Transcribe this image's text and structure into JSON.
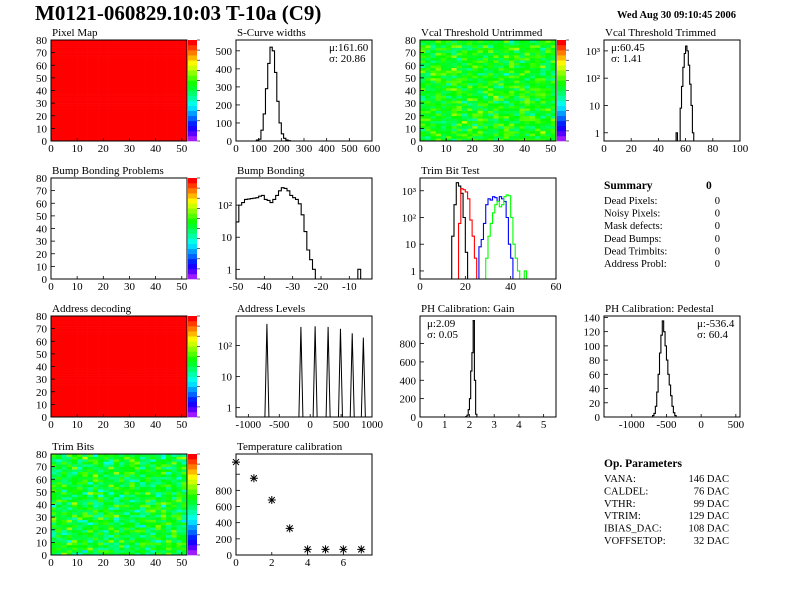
{
  "header": {
    "title": "M0121-060829.10:03 T-10a (C9)",
    "date": "Wed Aug 30 09:10:45 2006"
  },
  "colors": {
    "frame": "#000000",
    "hist": "#000000",
    "trim_black": "#000000",
    "trim_red": "#ff0000",
    "trim_blue": "#0000ff",
    "trim_green": "#00ff00"
  },
  "chart_data": [
    {
      "id": "pixel-map",
      "type": "heatmap",
      "title": "Pixel Map",
      "x_range": [
        0,
        52
      ],
      "y_range": [
        0,
        80
      ],
      "z_range": [
        0,
        10
      ],
      "fill": "uniform",
      "z_value": 10,
      "xticks": [
        {
          "v": 0,
          "l": "0"
        },
        {
          "v": 10,
          "l": "10"
        },
        {
          "v": 20,
          "l": "20"
        },
        {
          "v": 30,
          "l": "30"
        },
        {
          "v": 40,
          "l": "40"
        },
        {
          "v": 50,
          "l": "50"
        }
      ],
      "yticks": [
        {
          "v": 0,
          "l": "0"
        },
        {
          "v": 10,
          "l": "10"
        },
        {
          "v": 20,
          "l": "20"
        },
        {
          "v": 30,
          "l": "30"
        },
        {
          "v": 40,
          "l": "40"
        },
        {
          "v": 50,
          "l": "50"
        },
        {
          "v": 60,
          "l": "60"
        },
        {
          "v": 70,
          "l": "70"
        },
        {
          "v": 80,
          "l": "80"
        }
      ]
    },
    {
      "id": "s-curve-widths",
      "type": "bar",
      "title": "S-Curve widths",
      "log": false,
      "x_range": [
        0,
        600
      ],
      "y_range": [
        0,
        560
      ],
      "bins": {
        "x0": 90,
        "width": 10,
        "counts": [
          5,
          10,
          60,
          150,
          290,
          430,
          520,
          500,
          380,
          220,
          100,
          40,
          15,
          5,
          2
        ]
      },
      "stats": [
        "μ:161.60",
        "σ: 20.86"
      ],
      "xticks": [
        {
          "v": 0,
          "l": "0"
        },
        {
          "v": 100,
          "l": "100"
        },
        {
          "v": 200,
          "l": "200"
        },
        {
          "v": 300,
          "l": "300"
        },
        {
          "v": 400,
          "l": "400"
        },
        {
          "v": 500,
          "l": "500"
        },
        {
          "v": 600,
          "l": "600"
        }
      ],
      "yticks": [
        {
          "v": 0,
          "l": "0"
        },
        {
          "v": 100,
          "l": "100"
        },
        {
          "v": 200,
          "l": "200"
        },
        {
          "v": 300,
          "l": "300"
        },
        {
          "v": 400,
          "l": "400"
        },
        {
          "v": 500,
          "l": "500"
        }
      ]
    },
    {
      "id": "vcal-threshold-untrimmed",
      "type": "heatmap",
      "title": "Vcal Threshold Untrimmed",
      "x_range": [
        0,
        52
      ],
      "y_range": [
        0,
        80
      ],
      "z_range": [
        90,
        135
      ],
      "fill": "noisy",
      "z_mean": 115,
      "z_spread": 4,
      "xticks": [
        {
          "v": 0,
          "l": "0"
        },
        {
          "v": 10,
          "l": "10"
        },
        {
          "v": 20,
          "l": "20"
        },
        {
          "v": 30,
          "l": "30"
        },
        {
          "v": 40,
          "l": "40"
        },
        {
          "v": 50,
          "l": "50"
        }
      ],
      "yticks": [
        {
          "v": 0,
          "l": "0"
        },
        {
          "v": 10,
          "l": "10"
        },
        {
          "v": 20,
          "l": "20"
        },
        {
          "v": 30,
          "l": "30"
        },
        {
          "v": 40,
          "l": "40"
        },
        {
          "v": 50,
          "l": "50"
        },
        {
          "v": 60,
          "l": "60"
        },
        {
          "v": 70,
          "l": "70"
        },
        {
          "v": 80,
          "l": "80"
        }
      ]
    },
    {
      "id": "vcal-threshold-trimmed",
      "type": "bar",
      "title": "Vcal Threshold Trimmed",
      "log": true,
      "x_range": [
        0,
        100
      ],
      "y_range": [
        0.5,
        2500
      ],
      "bins": {
        "x0": 53,
        "width": 1,
        "counts": [
          1,
          0,
          0,
          8,
          50,
          250,
          800,
          1500,
          1000,
          300,
          60,
          10,
          1
        ]
      },
      "stats": [
        "μ:60.45",
        "σ: 1.41"
      ],
      "xticks": [
        {
          "v": 0,
          "l": "0"
        },
        {
          "v": 20,
          "l": "20"
        },
        {
          "v": 40,
          "l": "40"
        },
        {
          "v": 60,
          "l": "60"
        },
        {
          "v": 80,
          "l": "80"
        },
        {
          "v": 100,
          "l": "100"
        }
      ],
      "yticks": [
        {
          "v": 1,
          "l": "1"
        },
        {
          "v": 10,
          "l": "10"
        },
        {
          "v": 100,
          "l": "10²"
        },
        {
          "v": 1000,
          "l": "10³"
        }
      ]
    },
    {
      "id": "bump-bonding-problems",
      "type": "heatmap",
      "title": "Bump Bonding Problems",
      "x_range": [
        0,
        52
      ],
      "y_range": [
        0,
        80
      ],
      "z_range": [
        0,
        1
      ],
      "fill": "empty",
      "xticks": [
        {
          "v": 0,
          "l": "0"
        },
        {
          "v": 10,
          "l": "10"
        },
        {
          "v": 20,
          "l": "20"
        },
        {
          "v": 30,
          "l": "30"
        },
        {
          "v": 40,
          "l": "40"
        },
        {
          "v": 50,
          "l": "50"
        }
      ],
      "yticks": [
        {
          "v": 0,
          "l": "0"
        },
        {
          "v": 10,
          "l": "10"
        },
        {
          "v": 20,
          "l": "20"
        },
        {
          "v": 30,
          "l": "30"
        },
        {
          "v": 40,
          "l": "40"
        },
        {
          "v": 50,
          "l": "50"
        },
        {
          "v": 60,
          "l": "60"
        },
        {
          "v": 70,
          "l": "70"
        },
        {
          "v": 80,
          "l": "80"
        }
      ]
    },
    {
      "id": "bump-bonding",
      "type": "bar",
      "title": "Bump Bonding",
      "log": true,
      "x_range": [
        -50,
        -2
      ],
      "y_range": [
        0.5,
        700
      ],
      "bins": {
        "x0": -50,
        "width": 1,
        "counts": [
          30,
          100,
          120,
          150,
          155,
          160,
          165,
          170,
          190,
          200,
          150,
          140,
          120,
          150,
          200,
          280,
          350,
          330,
          280,
          200,
          170,
          150,
          110,
          50,
          15,
          4,
          2,
          1,
          0,
          0,
          0,
          0,
          0,
          0,
          0,
          0,
          0,
          0,
          0,
          0,
          0,
          0,
          0,
          1,
          0
        ]
      },
      "xticks": [
        {
          "v": -50,
          "l": "-50"
        },
        {
          "v": -40,
          "l": "-40"
        },
        {
          "v": -30,
          "l": "-30"
        },
        {
          "v": -20,
          "l": "-20"
        },
        {
          "v": -10,
          "l": "-10"
        }
      ],
      "yticks": [
        {
          "v": 1,
          "l": "1"
        },
        {
          "v": 10,
          "l": "10"
        },
        {
          "v": 100,
          "l": "10²"
        }
      ]
    },
    {
      "id": "trim-bit-test",
      "type": "bar",
      "title": "Trim Bit Test",
      "log": true,
      "x_range": [
        0,
        60
      ],
      "y_range": [
        0.5,
        3000
      ],
      "series": [
        {
          "color": "#000000",
          "bins": {
            "x0": 14,
            "width": 1,
            "counts": [
              20,
              300,
              2000,
              1500,
              800,
              100,
              5,
              0
            ]
          }
        },
        {
          "color": "#ff0000",
          "bins": {
            "x0": 17,
            "width": 1,
            "counts": [
              60,
              1200,
              1100,
              900,
              500,
              80,
              20,
              3,
              0
            ]
          }
        },
        {
          "color": "#0000ff",
          "bins": {
            "x0": 26,
            "width": 1,
            "counts": [
              8,
              15,
              60,
              300,
              500,
              450,
              600,
              550,
              400,
              600,
              500,
              400,
              100,
              10,
              3,
              0
            ]
          }
        },
        {
          "color": "#00ff00",
          "bins": {
            "x0": 29,
            "width": 1,
            "counts": [
              3,
              20,
              60,
              150,
              300,
              400,
              250,
              300,
              600,
              700,
              650,
              100,
              10,
              3,
              1,
              0,
              0,
              1,
              0
            ]
          }
        }
      ],
      "xticks": [
        {
          "v": 0,
          "l": "0"
        },
        {
          "v": 20,
          "l": "20"
        },
        {
          "v": 40,
          "l": "40"
        },
        {
          "v": 60,
          "l": "60"
        }
      ],
      "yticks": [
        {
          "v": 1,
          "l": "1"
        },
        {
          "v": 10,
          "l": "10"
        },
        {
          "v": 100,
          "l": "10²"
        },
        {
          "v": 1000,
          "l": "10³"
        }
      ]
    },
    {
      "id": "address-decoding",
      "type": "heatmap",
      "title": "Address decoding",
      "x_range": [
        0,
        52
      ],
      "y_range": [
        0,
        80
      ],
      "z_range": [
        0,
        1
      ],
      "fill": "uniform",
      "z_value": 1,
      "xticks": [
        {
          "v": 0,
          "l": "0"
        },
        {
          "v": 10,
          "l": "10"
        },
        {
          "v": 20,
          "l": "20"
        },
        {
          "v": 30,
          "l": "30"
        },
        {
          "v": 40,
          "l": "40"
        },
        {
          "v": 50,
          "l": "50"
        }
      ],
      "yticks": [
        {
          "v": 0,
          "l": "0"
        },
        {
          "v": 10,
          "l": "10"
        },
        {
          "v": 20,
          "l": "20"
        },
        {
          "v": 30,
          "l": "30"
        },
        {
          "v": 40,
          "l": "40"
        },
        {
          "v": 50,
          "l": "50"
        },
        {
          "v": 60,
          "l": "60"
        },
        {
          "v": 70,
          "l": "70"
        },
        {
          "v": 80,
          "l": "80"
        }
      ]
    },
    {
      "id": "address-levels",
      "type": "bar",
      "title": "Address Levels",
      "log": true,
      "x_range": [
        -1200,
        1000
      ],
      "y_range": [
        0.5,
        900
      ],
      "peaks": [
        [
          -700,
          500
        ],
        [
          -150,
          400
        ],
        [
          80,
          420
        ],
        [
          290,
          400
        ],
        [
          490,
          350
        ],
        [
          680,
          250
        ],
        [
          860,
          180
        ]
      ],
      "xticks": [
        {
          "v": -1000,
          "l": "-1000"
        },
        {
          "v": -500,
          "l": "-500"
        },
        {
          "v": 0,
          "l": "0"
        },
        {
          "v": 500,
          "l": "500"
        },
        {
          "v": 1000,
          "l": "1000"
        }
      ],
      "yticks": [
        {
          "v": 1,
          "l": "1"
        },
        {
          "v": 10,
          "l": "10"
        },
        {
          "v": 100,
          "l": "10²"
        }
      ]
    },
    {
      "id": "ph-calibration-gain",
      "type": "bar",
      "title": "PH Calibration: Gain",
      "log": false,
      "x_range": [
        0,
        5.5
      ],
      "y_range": [
        0,
        1100
      ],
      "bins": {
        "x0": 1.85,
        "width": 0.05,
        "counts": [
          5,
          20,
          80,
          200,
          500,
          700,
          1050,
          400,
          30,
          0
        ]
      },
      "stats": [
        "μ:2.09",
        "σ: 0.05"
      ],
      "xticks": [
        {
          "v": 0,
          "l": "0"
        },
        {
          "v": 1,
          "l": "1"
        },
        {
          "v": 2,
          "l": "2"
        },
        {
          "v": 3,
          "l": "3"
        },
        {
          "v": 4,
          "l": "4"
        },
        {
          "v": 5,
          "l": "5"
        }
      ],
      "yticks": [
        {
          "v": 0,
          "l": "0"
        },
        {
          "v": 200,
          "l": "200"
        },
        {
          "v": 400,
          "l": "400"
        },
        {
          "v": 600,
          "l": "600"
        },
        {
          "v": 800,
          "l": "800"
        }
      ]
    },
    {
      "id": "ph-calibration-pedestal",
      "type": "bar",
      "title": "PH Calibration: Pedestal",
      "log": false,
      "x_range": [
        -1400,
        560
      ],
      "y_range": [
        0,
        142
      ],
      "bins": {
        "x0": -700,
        "width": 20,
        "counts": [
          2,
          5,
          15,
          35,
          60,
          90,
          115,
          135,
          120,
          100,
          80,
          60,
          45,
          30,
          15,
          6,
          2
        ]
      },
      "stats": [
        "μ:-536.4",
        "σ: 60.4"
      ],
      "xticks": [
        {
          "v": -1000,
          "l": "-1000"
        },
        {
          "v": -500,
          "l": "-500"
        },
        {
          "v": 0,
          "l": "0"
        },
        {
          "v": 500,
          "l": "500"
        }
      ],
      "yticks": [
        {
          "v": 0,
          "l": "0"
        },
        {
          "v": 20,
          "l": "20"
        },
        {
          "v": 40,
          "l": "40"
        },
        {
          "v": 60,
          "l": "60"
        },
        {
          "v": 80,
          "l": "80"
        },
        {
          "v": 100,
          "l": "100"
        },
        {
          "v": 120,
          "l": "120"
        },
        {
          "v": 140,
          "l": "140"
        }
      ]
    },
    {
      "id": "trim-bits",
      "type": "heatmap",
      "title": "Trim Bits",
      "x_range": [
        0,
        52
      ],
      "y_range": [
        0,
        80
      ],
      "z_range": [
        0,
        16
      ],
      "fill": "noisy",
      "z_mean": 8.5,
      "z_spread": 1.6,
      "xticks": [
        {
          "v": 0,
          "l": "0"
        },
        {
          "v": 10,
          "l": "10"
        },
        {
          "v": 20,
          "l": "20"
        },
        {
          "v": 30,
          "l": "30"
        },
        {
          "v": 40,
          "l": "40"
        },
        {
          "v": 50,
          "l": "50"
        }
      ],
      "yticks": [
        {
          "v": 0,
          "l": "0"
        },
        {
          "v": 10,
          "l": "10"
        },
        {
          "v": 20,
          "l": "20"
        },
        {
          "v": 30,
          "l": "30"
        },
        {
          "v": 40,
          "l": "40"
        },
        {
          "v": 50,
          "l": "50"
        },
        {
          "v": 60,
          "l": "60"
        },
        {
          "v": 70,
          "l": "70"
        },
        {
          "v": 80,
          "l": "80"
        }
      ]
    },
    {
      "id": "temperature-calibration",
      "type": "scatter",
      "title": "Temperature calibration",
      "x_range": [
        0,
        7.6
      ],
      "y_range": [
        0,
        1250
      ],
      "points": [
        [
          0,
          1150
        ],
        [
          1,
          950
        ],
        [
          2,
          680
        ],
        [
          3,
          330
        ],
        [
          4,
          70
        ],
        [
          5,
          70
        ],
        [
          6,
          70
        ],
        [
          7,
          70
        ]
      ],
      "xticks": [
        {
          "v": 0,
          "l": "0"
        },
        {
          "v": 2,
          "l": "2"
        },
        {
          "v": 4,
          "l": "4"
        },
        {
          "v": 6,
          "l": "6"
        }
      ],
      "yticks": [
        {
          "v": 0,
          "l": "0"
        },
        {
          "v": 200,
          "l": "200"
        },
        {
          "v": 400,
          "l": "400"
        },
        {
          "v": 600,
          "l": "600"
        },
        {
          "v": 800,
          "l": "800"
        },
        {
          "v": 1000,
          "l": ""
        }
      ]
    }
  ],
  "summary": {
    "title": "Summary",
    "total": "0",
    "rows": [
      {
        "label": "Dead Pixels:",
        "value": "0"
      },
      {
        "label": "Noisy Pixels:",
        "value": "0"
      },
      {
        "label": "Mask defects:",
        "value": "0"
      },
      {
        "label": "Dead Bumps:",
        "value": "0"
      },
      {
        "label": "Dead Trimbits:",
        "value": "0"
      },
      {
        "label": "Address Probl:",
        "value": "0"
      }
    ]
  },
  "op_parameters": {
    "title": "Op. Parameters",
    "rows": [
      {
        "label": "VANA:",
        "value": "146 DAC"
      },
      {
        "label": "CALDEL:",
        "value": "76 DAC"
      },
      {
        "label": "VTHR:",
        "value": "99 DAC"
      },
      {
        "label": "VTRIM:",
        "value": "129 DAC"
      },
      {
        "label": "IBIAS_DAC:",
        "value": "108 DAC"
      },
      {
        "label": "VOFFSETOP:",
        "value": "32 DAC"
      }
    ]
  }
}
